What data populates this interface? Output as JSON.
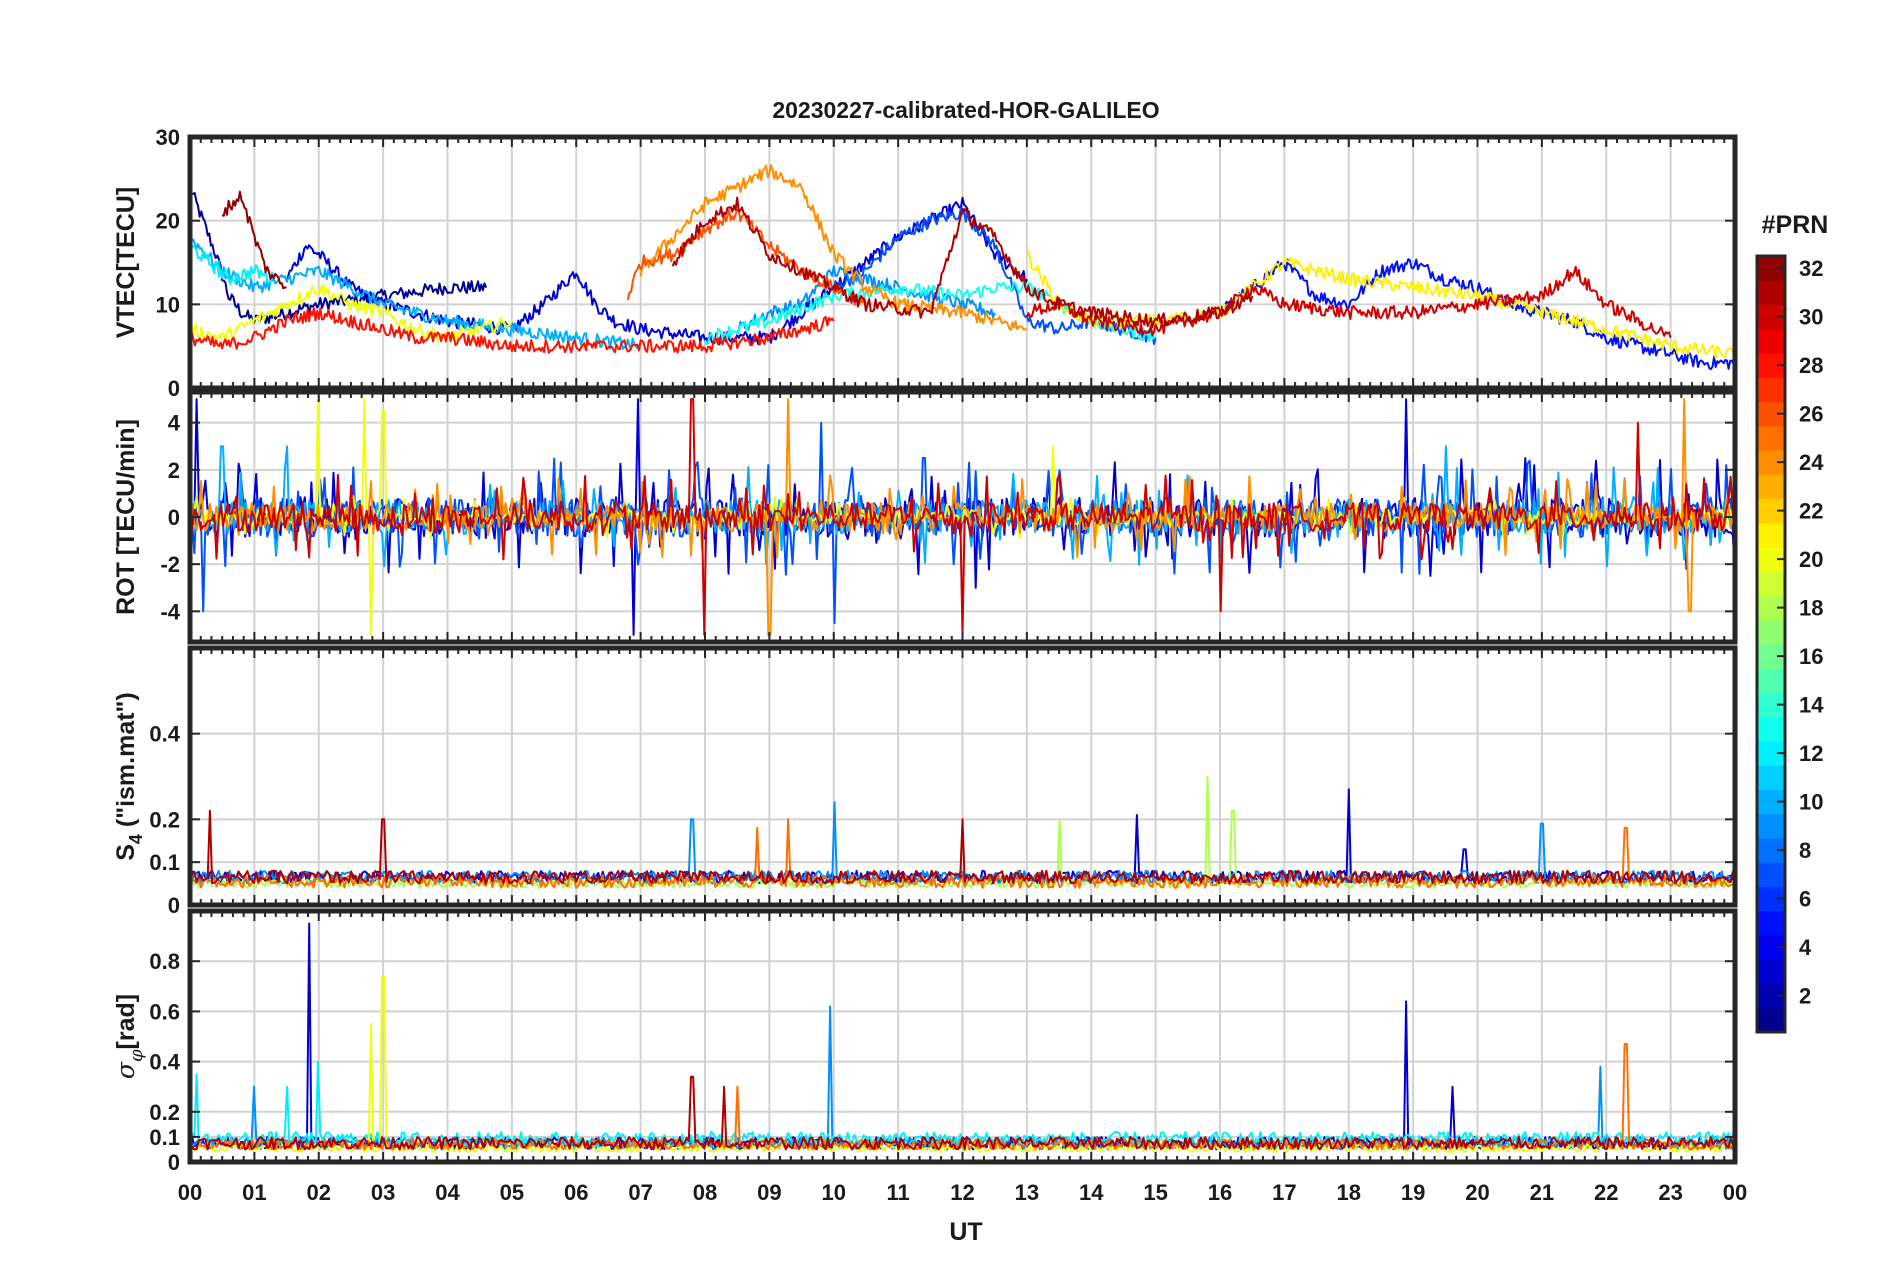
{
  "chart_data": {
    "title": "20230227-calibrated-HOR-GALILEO",
    "type": "line",
    "xlabel": "UT",
    "x_ticks": [
      "00",
      "01",
      "02",
      "03",
      "04",
      "05",
      "06",
      "07",
      "08",
      "09",
      "10",
      "11",
      "12",
      "13",
      "14",
      "15",
      "16",
      "17",
      "18",
      "19",
      "20",
      "21",
      "22",
      "23",
      "00"
    ],
    "xlim": [
      0,
      24
    ],
    "colorbar": {
      "label": "#PRN",
      "range": [
        1,
        32
      ],
      "ticks": [
        "2",
        "4",
        "6",
        "8",
        "10",
        "12",
        "14",
        "16",
        "18",
        "20",
        "22",
        "24",
        "26",
        "28",
        "30",
        "32"
      ],
      "colormap": "jet"
    },
    "panels": [
      {
        "id": "vtec",
        "ylabel": "VTEC[TECU]",
        "ylim": [
          0,
          30
        ],
        "y_ticks": [
          "0",
          "10",
          "20",
          "30"
        ],
        "y_tick_values": [
          0,
          10,
          20,
          30
        ],
        "series": [
          {
            "prn": 1,
            "x": [
              0,
              0.2,
              0.4,
              0.6,
              0.8,
              1.0,
              1.5,
              2.0,
              3.0,
              4.0,
              4.6
            ],
            "y": [
              24,
              20,
              16,
              11,
              9,
              8,
              9,
              10,
              11,
              12,
              12
            ]
          },
          {
            "prn": 3,
            "x": [
              1.5,
              1.8,
              2.0,
              2.5,
              3.0,
              3.5,
              4.0,
              5.0,
              5.5,
              6.0,
              6.3,
              6.6,
              7.0,
              8.0,
              9.0,
              10.0,
              11.0,
              12.0,
              12.5,
              13.0
            ],
            "y": [
              13,
              17,
              16,
              12,
              10,
              9,
              8,
              7,
              10,
              14,
              10,
              8,
              7,
              6,
              6,
              12,
              18,
              22,
              16,
              13
            ]
          },
          {
            "prn": 5,
            "x": [
              16.0,
              16.5,
              17.0,
              17.5,
              18.0,
              18.5,
              19.0,
              19.5,
              20.0,
              20.5,
              21.0,
              21.5,
              22.0,
              22.5,
              23.0,
              23.5,
              24.0
            ],
            "y": [
              9,
              12,
              15,
              11,
              10,
              14,
              15,
              13,
              12,
              10,
              9,
              8,
              6,
              5,
              4,
              3,
              3
            ]
          },
          {
            "prn": 7,
            "x": [
              10.0,
              10.5,
              11.0,
              11.5,
              12.0,
              12.5,
              13.0,
              13.5,
              14.0,
              14.5,
              15.0
            ],
            "y": [
              12,
              14,
              18,
              20,
              21,
              17,
              8,
              7,
              8,
              7,
              6
            ]
          },
          {
            "prn": 9,
            "x": [
              8.5,
              9.0,
              9.5,
              10.0,
              10.5,
              11.0,
              11.5,
              12.0,
              12.5
            ],
            "y": [
              7,
              9,
              10,
              14,
              13,
              12,
              11,
              10,
              9
            ]
          },
          {
            "prn": 10,
            "x": [
              0,
              0.5,
              1.0,
              1.5,
              2.0,
              2.5,
              3.0,
              4.0,
              5.0,
              6.0,
              7.0
            ],
            "y": [
              18,
              14,
              12,
              13,
              14,
              12,
              10,
              8,
              7,
              6,
              5
            ]
          },
          {
            "prn": 12,
            "x": [
              0,
              0.3,
              0.6,
              1.0,
              1.3
            ],
            "y": [
              17,
              15,
              13,
              14,
              13
            ]
          },
          {
            "prn": 13,
            "x": [
              8.0,
              9.0,
              10.0,
              11.0,
              12.0,
              12.5,
              13.0,
              13.5,
              14.0,
              14.5,
              15.0
            ],
            "y": [
              6,
              8,
              11,
              12,
              11,
              12,
              12,
              10,
              8,
              7,
              6
            ]
          },
          {
            "prn": 20,
            "x": [
              0,
              0.5,
              1.0,
              1.5,
              2.0,
              2.5,
              3.0,
              3.5,
              4.0,
              5.0
            ],
            "y": [
              7,
              6,
              8,
              10,
              12,
              10,
              9,
              7,
              6,
              8
            ]
          },
          {
            "prn": 21,
            "x": [
              13.0,
              13.5,
              14.0,
              15.0,
              16.0,
              17.0,
              17.5,
              18.0,
              19.0,
              20.0,
              21.0,
              22.0,
              23.0,
              24.0
            ],
            "y": [
              16,
              10,
              8,
              8,
              9,
              15,
              14,
              13,
              12,
              11,
              9,
              7,
              5,
              4
            ]
          },
          {
            "prn": 24,
            "x": [
              7.0,
              7.5,
              8.0,
              8.5,
              9.0,
              9.5,
              10.0,
              10.5,
              11.0,
              12.0,
              12.5,
              13.0
            ],
            "y": [
              14,
              18,
              22,
              24,
              26,
              24,
              16,
              12,
              10,
              9,
              8,
              7
            ]
          },
          {
            "prn": 26,
            "x": [
              6.8,
              7.0,
              7.5,
              8.0,
              8.5,
              9.0,
              9.5,
              10.0,
              10.5
            ],
            "y": [
              11,
              15,
              16,
              19,
              21,
              17,
              14,
              12,
              10
            ]
          },
          {
            "prn": 28,
            "x": [
              0,
              0.5,
              1.0,
              1.5,
              2.0,
              2.5,
              3.0,
              3.5,
              4.0,
              5.0,
              6.0,
              7.0,
              8.0,
              9.0,
              10.0
            ],
            "y": [
              6,
              5,
              6,
              8,
              9,
              8,
              7,
              6,
              6,
              5,
              5,
              5,
              5,
              6,
              8
            ]
          },
          {
            "prn": 30,
            "x": [
              13.0,
              13.5,
              14.0,
              15.0,
              16.0,
              16.5,
              17.0,
              18.0,
              19.0,
              20.0,
              21.0,
              21.5,
              22.0,
              22.5,
              23.0
            ],
            "y": [
              9,
              10,
              8,
              7,
              9,
              12,
              10,
              9,
              9,
              10,
              11,
              14,
              10,
              8,
              6
            ]
          },
          {
            "prn": 32,
            "x": [
              0.5,
              0.8,
              1.0,
              1.2,
              1.5
            ],
            "y": [
              21,
              23,
              18,
              14,
              12
            ]
          },
          {
            "prn": 31,
            "x": [
              7.5,
              8.0,
              8.5,
              9.0,
              9.5,
              10.0,
              10.5,
              11.5,
              12.0,
              12.5,
              13.0,
              13.5,
              14.0,
              15.0,
              16.0,
              16.5
            ],
            "y": [
              15,
              20,
              22,
              16,
              14,
              12,
              10,
              9,
              21,
              18,
              12,
              10,
              9,
              8,
              9,
              11
            ]
          }
        ]
      },
      {
        "id": "rot",
        "ylabel": "ROT [TECU/min]",
        "ylim": [
          -5.3,
          5.3
        ],
        "y_ticks": [
          "-4",
          "-2",
          "0",
          "2",
          "4"
        ],
        "y_tick_values": [
          -4,
          -2,
          0,
          2,
          4
        ],
        "series": [
          {
            "prn": 3,
            "x_range": [
              0,
              24
            ],
            "amplitude": 1.4,
            "peaks": [
              [
                0.1,
                5
              ],
              [
                6.9,
                -5
              ],
              [
                6.95,
                5
              ],
              [
                18.9,
                5
              ],
              [
                12.2,
                -3
              ]
            ]
          },
          {
            "prn": 7,
            "x_range": [
              0,
              24
            ],
            "amplitude": 1.4,
            "peaks": [
              [
                0.2,
                -4
              ],
              [
                9.8,
                4
              ],
              [
                10.0,
                -4.5
              ],
              [
                11.4,
                2.5
              ]
            ]
          },
          {
            "prn": 10,
            "x_range": [
              0,
              24
            ],
            "amplitude": 1.2,
            "peaks": [
              [
                0.5,
                3
              ],
              [
                1.5,
                3
              ],
              [
                19.5,
                3
              ]
            ]
          },
          {
            "prn": 20,
            "x_range": [
              0,
              24
            ],
            "amplitude": 0.5,
            "peaks": [
              [
                2.0,
                5
              ],
              [
                2.7,
                5
              ],
              [
                2.8,
                -5
              ],
              [
                3.0,
                4.5
              ],
              [
                13.4,
                3
              ]
            ]
          },
          {
            "prn": 24,
            "x_range": [
              0,
              24
            ],
            "amplitude": 1.0,
            "peaks": [
              [
                9.0,
                -5
              ],
              [
                9.3,
                5
              ],
              [
                23.2,
                5
              ],
              [
                23.3,
                -4
              ]
            ]
          },
          {
            "prn": 30,
            "x_range": [
              0,
              24
            ],
            "amplitude": 1.0,
            "peaks": [
              [
                7.8,
                5
              ],
              [
                8.0,
                -5
              ],
              [
                12.0,
                -5
              ],
              [
                22.5,
                4
              ],
              [
                16.0,
                -4
              ]
            ]
          }
        ]
      },
      {
        "id": "s4",
        "ylabel": "S4 (\"ism.mat\")",
        "ylabel_main": "S",
        "ylabel_sub": "4",
        "ylabel_rest": " (\"ism.mat\")",
        "ylim": [
          0,
          0.6
        ],
        "y_ticks": [
          "0",
          "0.1",
          "0.2",
          "0.4"
        ],
        "y_tick_values": [
          0,
          0.1,
          0.2,
          0.4
        ],
        "series": [
          {
            "prn": 3,
            "x_range": [
              0,
              24
            ],
            "base": 0.05,
            "amplitude": 0.03,
            "peaks": [
              [
                18.0,
                0.27
              ],
              [
                14.7,
                0.21
              ],
              [
                19.8,
                0.13
              ]
            ]
          },
          {
            "prn": 9,
            "x_range": [
              0,
              24
            ],
            "base": 0.05,
            "amplitude": 0.03,
            "peaks": [
              [
                7.8,
                0.2
              ],
              [
                10.0,
                0.24
              ],
              [
                21.0,
                0.19
              ]
            ]
          },
          {
            "prn": 18,
            "x_range": [
              0,
              24
            ],
            "base": 0.04,
            "amplitude": 0.02,
            "peaks": [
              [
                13.5,
                0.2
              ],
              [
                15.8,
                0.3
              ],
              [
                16.2,
                0.22
              ]
            ]
          },
          {
            "prn": 25,
            "x_range": [
              0,
              24
            ],
            "base": 0.04,
            "amplitude": 0.03,
            "peaks": [
              [
                9.3,
                0.2
              ],
              [
                8.8,
                0.18
              ],
              [
                22.3,
                0.18
              ]
            ]
          },
          {
            "prn": 31,
            "x_range": [
              0,
              24
            ],
            "base": 0.05,
            "amplitude": 0.03,
            "peaks": [
              [
                0.3,
                0.22
              ],
              [
                3.0,
                0.2
              ],
              [
                12.0,
                0.2
              ]
            ]
          }
        ]
      },
      {
        "id": "sigma",
        "ylabel": "σφ[rad]",
        "ylabel_main": "σ",
        "ylabel_sub": "φ",
        "ylabel_rest": "[rad]",
        "ylim": [
          0,
          1.0
        ],
        "y_ticks": [
          "0",
          "0.1",
          "0.2",
          "0.4",
          "0.6",
          "0.8"
        ],
        "y_tick_values": [
          0,
          0.1,
          0.2,
          0.4,
          0.6,
          0.8
        ],
        "series": [
          {
            "prn": 3,
            "x_range": [
              0,
              24
            ],
            "base": 0.05,
            "amplitude": 0.05,
            "peaks": [
              [
                1.85,
                0.95
              ],
              [
                18.9,
                0.64
              ],
              [
                19.6,
                0.3
              ]
            ]
          },
          {
            "prn": 9,
            "x_range": [
              0,
              24
            ],
            "base": 0.05,
            "amplitude": 0.05,
            "peaks": [
              [
                9.95,
                0.62
              ],
              [
                21.9,
                0.38
              ],
              [
                1.0,
                0.3
              ]
            ]
          },
          {
            "prn": 12,
            "x_range": [
              0,
              24
            ],
            "base": 0.06,
            "amplitude": 0.06,
            "peaks": [
              [
                0.1,
                0.35
              ],
              [
                1.5,
                0.3
              ],
              [
                2.0,
                0.4
              ]
            ]
          },
          {
            "prn": 20,
            "x_range": [
              0,
              24
            ],
            "base": 0.04,
            "amplitude": 0.03,
            "peaks": [
              [
                2.8,
                0.55
              ],
              [
                3.0,
                0.74
              ]
            ]
          },
          {
            "prn": 25,
            "x_range": [
              0,
              24
            ],
            "base": 0.05,
            "amplitude": 0.04,
            "peaks": [
              [
                22.3,
                0.47
              ],
              [
                8.5,
                0.3
              ]
            ]
          },
          {
            "prn": 31,
            "x_range": [
              0,
              24
            ],
            "base": 0.05,
            "amplitude": 0.05,
            "peaks": [
              [
                7.8,
                0.34
              ],
              [
                8.3,
                0.3
              ]
            ]
          }
        ]
      }
    ]
  }
}
